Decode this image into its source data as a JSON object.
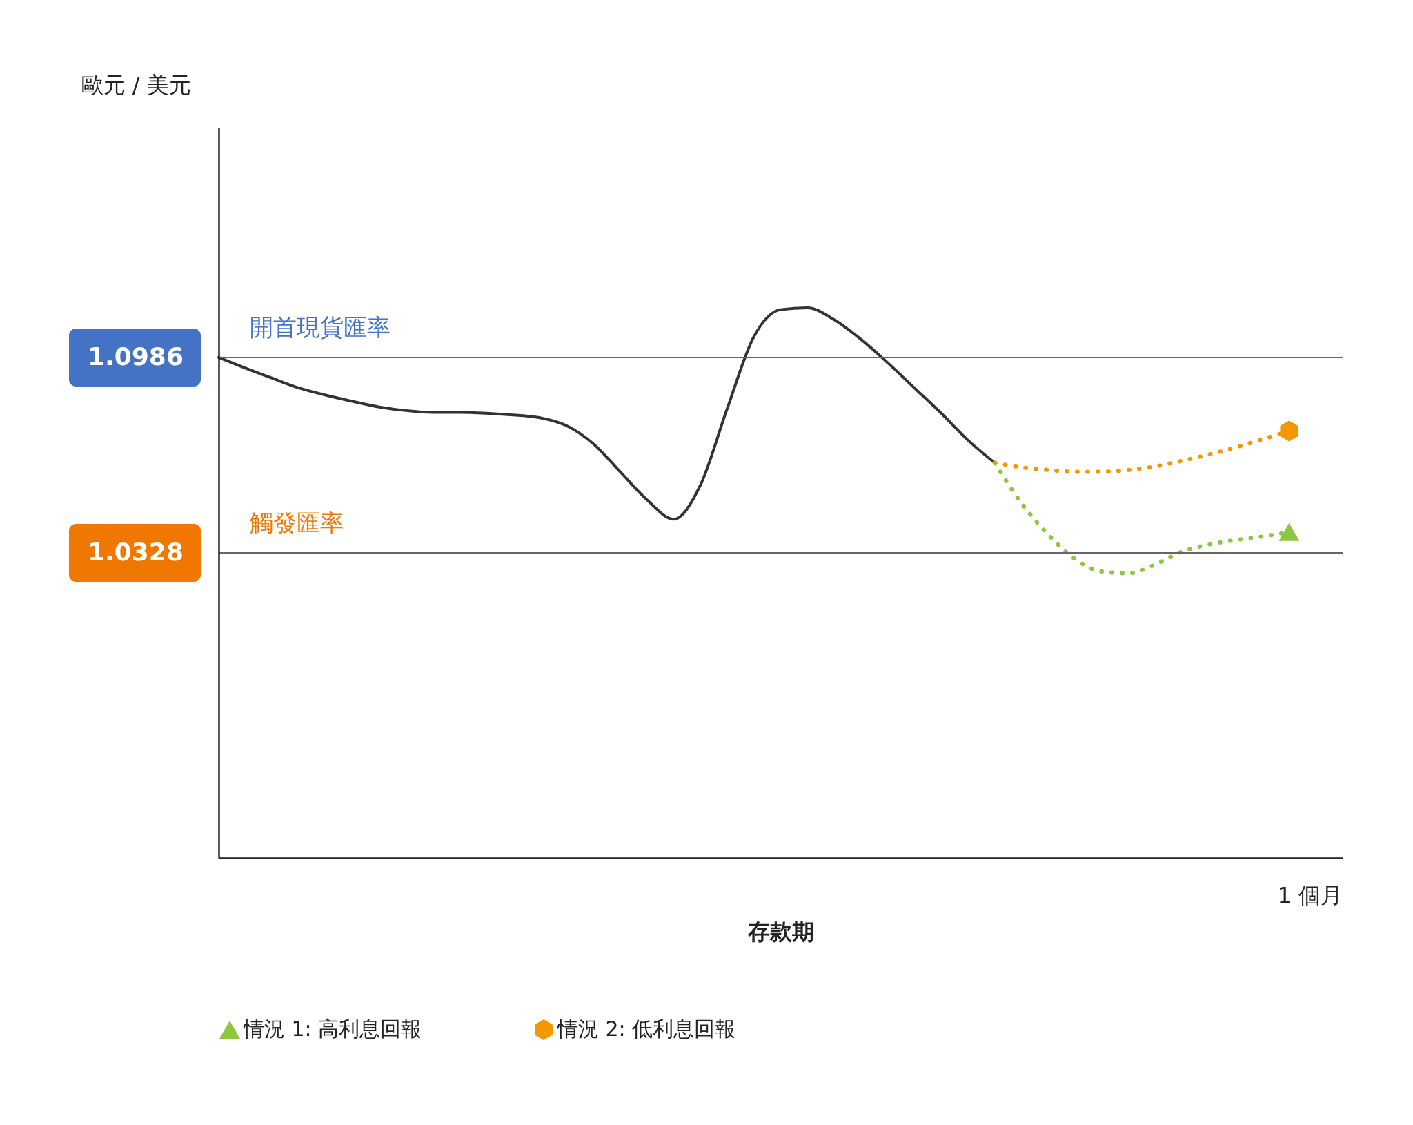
{
  "chart_data": {
    "type": "line",
    "xlabel": "存款期",
    "ylabel": "歐元 / 美元",
    "categories": [
      null,
      null,
      null,
      null,
      null,
      null,
      null,
      null,
      null,
      null,
      null,
      null,
      null,
      null,
      null,
      null,
      null,
      null,
      null,
      null,
      null,
      null,
      null,
      null,
      null,
      null,
      null,
      null,
      null,
      null,
      null,
      null,
      null,
      null,
      null,
      null,
      null,
      null,
      null,
      null,
      null,
      null,
      null
    ],
    "ylim": [
      0.93,
      1.176
    ],
    "yticks": [
      {
        "value": 1.0986,
        "label": "1.0986"
      },
      {
        "value": 1.0328,
        "label": "1.0328"
      }
    ],
    "grid": false,
    "legend": "bottom",
    "series": [
      {
        "color": "#333333",
        "line_style": "solid",
        "values": [
          1.0986,
          1.095,
          1.0916,
          1.0883,
          1.0859,
          1.0838,
          1.0819,
          1.0807,
          1.0801,
          1.0801,
          1.0798,
          1.0792,
          1.0783,
          1.0756,
          1.0695,
          1.0601,
          1.0507,
          1.0441,
          1.0556,
          1.0813,
          1.1056,
          1.1147,
          1.1153,
          1.1113,
          1.1047,
          1.0968,
          1.0883,
          1.0798,
          1.0707,
          1.0631,
          null,
          null,
          null,
          null,
          null,
          null,
          null,
          null,
          null,
          null,
          null,
          null,
          null
        ]
      },
      {
        "name": "情況 1: 高利息回報",
        "color": "#8dc63f",
        "line_style": "dotted",
        "values": [
          null,
          null,
          null,
          null,
          null,
          null,
          null,
          null,
          null,
          null,
          null,
          null,
          null,
          null,
          null,
          null,
          null,
          null,
          null,
          null,
          null,
          null,
          null,
          null,
          null,
          null,
          null,
          null,
          null,
          1.0631,
          1.0495,
          1.0389,
          1.0307,
          1.0265,
          1.0259,
          1.0289,
          1.0332,
          1.0356,
          1.0371,
          1.0383,
          1.0398,
          null,
          null
        ]
      },
      {
        "name": "情況 2: 低利息回報",
        "color": "#f39800",
        "line_style": "dotted",
        "values": [
          null,
          null,
          null,
          null,
          null,
          null,
          null,
          null,
          null,
          null,
          null,
          null,
          null,
          null,
          null,
          null,
          null,
          null,
          null,
          null,
          null,
          null,
          null,
          null,
          null,
          null,
          null,
          null,
          null,
          1.0631,
          1.0616,
          1.0607,
          1.0601,
          1.0601,
          1.0607,
          1.0619,
          1.0638,
          1.0659,
          1.0683,
          1.071,
          1.0738,
          null,
          null
        ]
      }
    ],
    "ref_lines": [
      {
        "axis": "y",
        "value": 1.0986,
        "label": "開首現貨匯率",
        "color": "#666666"
      },
      {
        "axis": "y",
        "value": 1.0328,
        "label": "觸發匯率",
        "color": "#666666"
      }
    ],
    "annotations": [
      "1 個月"
    ]
  }
}
